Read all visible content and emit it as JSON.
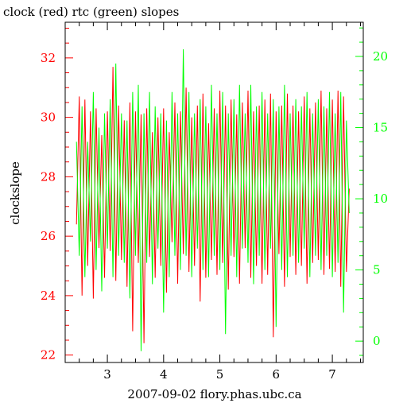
{
  "colors": {
    "clock": "#ff0000",
    "rtc": "#00ff00",
    "axis": "#000000",
    "background": "#ffffff"
  },
  "chart_data": {
    "type": "line",
    "title": "clock (red) rtc (green) slopes",
    "xlabel": "2007-09-02 flory.phas.ubc.ca",
    "ylabel": "clockslope",
    "ylabel_right": "",
    "xlim": [
      2.25,
      7.55
    ],
    "ylim": [
      21.75,
      33.2
    ],
    "ylim_right": [
      -1.5,
      22.4
    ],
    "x_ticks": [
      3,
      4,
      5,
      6,
      7
    ],
    "y_ticks": [
      22,
      24,
      26,
      28,
      30,
      32
    ],
    "y_ticks_right": [
      0,
      5,
      10,
      15,
      20
    ],
    "grid": false,
    "series": [
      {
        "name": "clock",
        "axis": "left",
        "color": "#ff0000",
        "x": [
          2.45,
          2.5,
          2.55,
          2.6,
          2.65,
          2.7,
          2.75,
          2.8,
          2.85,
          2.9,
          2.95,
          3.0,
          3.05,
          3.1,
          3.15,
          3.2,
          3.25,
          3.3,
          3.35,
          3.4,
          3.45,
          3.5,
          3.55,
          3.6,
          3.65,
          3.7,
          3.75,
          3.8,
          3.85,
          3.9,
          3.95,
          4.0,
          4.05,
          4.1,
          4.15,
          4.2,
          4.25,
          4.3,
          4.35,
          4.4,
          4.45,
          4.5,
          4.55,
          4.6,
          4.65,
          4.7,
          4.75,
          4.8,
          4.85,
          4.9,
          4.95,
          5.0,
          5.05,
          5.1,
          5.15,
          5.2,
          5.25,
          5.3,
          5.35,
          5.4,
          5.45,
          5.5,
          5.55,
          5.6,
          5.65,
          5.7,
          5.75,
          5.8,
          5.85,
          5.9,
          5.95,
          6.0,
          6.05,
          6.1,
          6.15,
          6.2,
          6.25,
          6.3,
          6.35,
          6.4,
          6.45,
          6.5,
          6.55,
          6.6,
          6.65,
          6.7,
          6.75,
          6.8,
          6.85,
          6.9,
          6.95,
          7.0,
          7.05,
          7.1,
          7.15,
          7.2,
          7.25,
          7.3
        ],
        "values": [
          26.4,
          30.7,
          24.0,
          30.6,
          25.0,
          30.2,
          23.9,
          30.3,
          25.6,
          29.4,
          24.6,
          30.2,
          25.5,
          31.7,
          24.5,
          30.4,
          25.2,
          29.9,
          24.3,
          30.5,
          22.8,
          30.2,
          25.1,
          30.1,
          22.4,
          30.3,
          25.3,
          29.5,
          24.6,
          30.0,
          25.0,
          30.3,
          24.1,
          29.5,
          25.8,
          30.5,
          24.4,
          30.2,
          25.4,
          31.0,
          24.8,
          30.0,
          25.0,
          30.4,
          23.8,
          30.8,
          24.6,
          29.8,
          25.2,
          30.3,
          24.7,
          30.9,
          25.1,
          30.4,
          24.2,
          30.6,
          25.3,
          30.1,
          24.4,
          30.5,
          25.6,
          30.9,
          24.6,
          30.2,
          25.0,
          30.4,
          24.4,
          30.6,
          24.7,
          30.8,
          22.6,
          30.2,
          25.4,
          30.4,
          24.3,
          30.8,
          25.3,
          30.4,
          24.7,
          30.2,
          25.0,
          30.7,
          24.4,
          30.3,
          25.1,
          30.5,
          25.2,
          30.9,
          24.7,
          30.3,
          24.9,
          30.6,
          24.8,
          30.9,
          24.3,
          30.7,
          24.8,
          27.6
        ]
      },
      {
        "name": "rtc",
        "axis": "right",
        "color": "#00ff00",
        "x": [
          2.45,
          2.5,
          2.55,
          2.6,
          2.65,
          2.7,
          2.75,
          2.8,
          2.85,
          2.9,
          2.95,
          3.0,
          3.05,
          3.1,
          3.15,
          3.2,
          3.25,
          3.3,
          3.35,
          3.4,
          3.45,
          3.5,
          3.55,
          3.6,
          3.65,
          3.7,
          3.75,
          3.8,
          3.85,
          3.9,
          3.95,
          4.0,
          4.05,
          4.1,
          4.15,
          4.2,
          4.25,
          4.3,
          4.35,
          4.4,
          4.45,
          4.5,
          4.55,
          4.6,
          4.65,
          4.7,
          4.75,
          4.8,
          4.85,
          4.9,
          4.95,
          5.0,
          5.05,
          5.1,
          5.15,
          5.2,
          5.25,
          5.3,
          5.35,
          5.4,
          5.45,
          5.5,
          5.55,
          5.6,
          5.65,
          5.7,
          5.75,
          5.8,
          5.85,
          5.9,
          5.95,
          6.0,
          6.05,
          6.1,
          6.15,
          6.2,
          6.25,
          6.3,
          6.35,
          6.4,
          6.45,
          6.5,
          6.55,
          6.6,
          6.65,
          6.7,
          6.75,
          6.8,
          6.85,
          6.9,
          6.95,
          7.0,
          7.05,
          7.1,
          7.15,
          7.2,
          7.25,
          7.3
        ],
        "values": [
          14.0,
          6.0,
          16.5,
          4.5,
          14.0,
          7.0,
          17.5,
          5.0,
          15.0,
          3.5,
          16.0,
          6.5,
          17.0,
          4.5,
          19.5,
          6.0,
          16.0,
          5.5,
          15.5,
          3.0,
          17.5,
          6.0,
          18.0,
          -0.7,
          16.0,
          5.5,
          17.5,
          4.0,
          16.5,
          6.5,
          16.0,
          2.0,
          15.5,
          4.5,
          17.5,
          6.0,
          16.0,
          5.0,
          20.5,
          6.0,
          17.5,
          4.5,
          16.0,
          6.5,
          17.0,
          5.0,
          16.5,
          4.5,
          18.0,
          6.0,
          16.0,
          5.0,
          17.5,
          0.5,
          16.0,
          6.0,
          17.0,
          4.5,
          18.0,
          6.5,
          16.0,
          5.5,
          18.0,
          4.0,
          16.5,
          6.0,
          17.5,
          5.0,
          16.0,
          6.5,
          17.0,
          1.0,
          16.5,
          5.0,
          18.0,
          4.5,
          16.0,
          6.0,
          17.0,
          5.5,
          16.5,
          6.5,
          17.5,
          4.5,
          16.0,
          6.0,
          17.0,
          5.0,
          16.5,
          6.0,
          17.5,
          4.5,
          16.0,
          5.5,
          17.5,
          2.0,
          15.5,
          9.0
        ]
      }
    ]
  }
}
